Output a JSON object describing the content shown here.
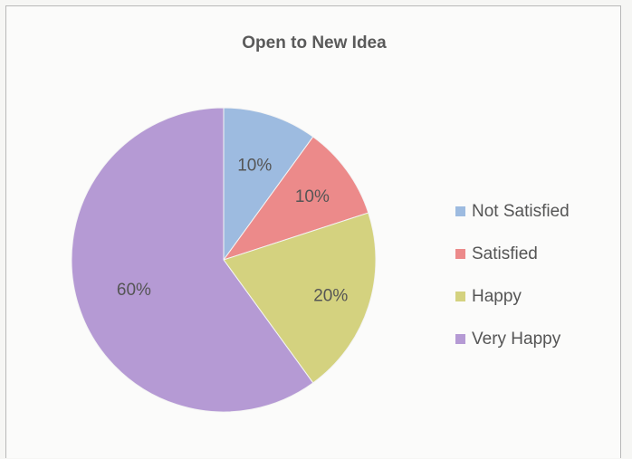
{
  "chart_data": {
    "type": "pie",
    "title": "Open to New Idea",
    "categories": [
      "Not Satisfied",
      "Satisfied",
      "Happy",
      "Very Happy"
    ],
    "values": [
      10,
      10,
      20,
      60
    ],
    "data_labels": [
      "10%",
      "10%",
      "20%",
      "60%"
    ],
    "colors": [
      "#9dbbe0",
      "#ec8a8a",
      "#d4d27f",
      "#b59ad4"
    ],
    "legend_position": "right",
    "start_angle": "top",
    "direction": "clockwise"
  }
}
